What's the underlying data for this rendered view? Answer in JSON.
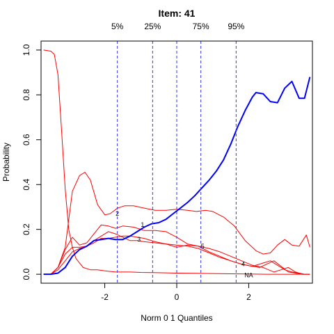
{
  "chart_data": {
    "type": "line",
    "title": "Item:  41",
    "xlabel": "Norm 0 1 Quantiles",
    "ylabel": "Probability",
    "xlim": [
      -3.77,
      3.77
    ],
    "ylim": [
      -0.04,
      1.04
    ],
    "xticks": [
      -2,
      0,
      2
    ],
    "xtick_labels": [
      "-2",
      "0",
      "2"
    ],
    "yticks": [
      0.0,
      0.2,
      0.4,
      0.6,
      0.8,
      1.0
    ],
    "ytick_labels": [
      "0.0",
      "0.2",
      "0.4",
      "0.6",
      "0.8",
      "1.0"
    ],
    "grid": false,
    "quantile_lines": [
      {
        "label": "5%",
        "x": -1.65
      },
      {
        "label": "25%",
        "x": -0.67
      },
      {
        "label": "",
        "x": 0.0
      },
      {
        "label": "75%",
        "x": 0.67
      },
      {
        "label": "95%",
        "x": 1.65
      }
    ],
    "series": [
      {
        "name": "1",
        "color": "#0000ff",
        "width": 2,
        "label_point": [
          -0.95,
          0.22
        ],
        "x": [
          -3.7,
          -3.5,
          -3.3,
          -3.1,
          -2.9,
          -2.7,
          -2.5,
          -2.3,
          -2.1,
          -1.9,
          -1.7,
          -1.5,
          -1.3,
          -1.1,
          -0.9,
          -0.7,
          -0.5,
          -0.3,
          -0.1,
          0.1,
          0.3,
          0.5,
          0.7,
          0.9,
          1.1,
          1.3,
          1.5,
          1.7,
          1.9,
          2.1,
          2.2,
          2.4,
          2.6,
          2.8,
          3.0,
          3.2,
          3.4,
          3.55,
          3.7
        ],
        "y": [
          0.0,
          0.0,
          0.005,
          0.03,
          0.08,
          0.11,
          0.125,
          0.15,
          0.155,
          0.16,
          0.155,
          0.155,
          0.17,
          0.19,
          0.21,
          0.225,
          0.23,
          0.245,
          0.27,
          0.295,
          0.32,
          0.35,
          0.385,
          0.42,
          0.46,
          0.51,
          0.58,
          0.66,
          0.73,
          0.79,
          0.81,
          0.805,
          0.77,
          0.765,
          0.83,
          0.86,
          0.785,
          0.785,
          0.88
        ]
      },
      {
        "name": "2",
        "color": "#ff0000",
        "width": 1,
        "label_point": [
          -1.65,
          0.27
        ],
        "x": [
          -3.7,
          -3.5,
          -3.3,
          -3.1,
          -2.9,
          -2.7,
          -2.55,
          -2.4,
          -2.2,
          -2.0,
          -1.85,
          -1.65,
          -1.45,
          -1.2,
          -0.9,
          -0.6,
          -0.3,
          0.0,
          0.3,
          0.55,
          0.8,
          1.0,
          1.3,
          1.6,
          1.9,
          2.2,
          2.4,
          2.6,
          2.8,
          3.0,
          3.2,
          3.4,
          3.6,
          3.7
        ],
        "y": [
          0.0,
          0.0,
          0.03,
          0.12,
          0.37,
          0.44,
          0.455,
          0.42,
          0.31,
          0.265,
          0.27,
          0.295,
          0.305,
          0.305,
          0.295,
          0.285,
          0.285,
          0.29,
          0.285,
          0.28,
          0.285,
          0.28,
          0.255,
          0.215,
          0.15,
          0.105,
          0.09,
          0.095,
          0.13,
          0.155,
          0.13,
          0.125,
          0.175,
          0.12
        ]
      },
      {
        "name": "3",
        "color": "#ff0000",
        "width": 1,
        "label_point": [
          -1.05,
          0.155
        ],
        "x": [
          -3.7,
          -3.5,
          -3.3,
          -3.1,
          -2.9,
          -2.7,
          -2.5,
          -2.3,
          -2.1,
          -1.9,
          -1.7,
          -1.5,
          -1.3,
          -1.1,
          -0.9,
          -0.6,
          -0.3,
          0.0,
          0.3,
          0.6,
          0.9,
          1.2,
          1.5,
          1.8,
          2.1,
          2.4,
          2.6,
          2.8,
          3.0,
          3.2,
          3.4,
          3.55,
          3.7
        ],
        "y": [
          0.0,
          0.0,
          0.03,
          0.09,
          0.12,
          0.12,
          0.125,
          0.15,
          0.17,
          0.19,
          0.18,
          0.165,
          0.15,
          0.15,
          0.145,
          0.14,
          0.135,
          0.13,
          0.125,
          0.115,
          0.095,
          0.075,
          0.06,
          0.045,
          0.035,
          0.05,
          0.06,
          0.04,
          0.02,
          0.01,
          0.005,
          0.0,
          0.0
        ]
      },
      {
        "name": "4",
        "color": "#ff0000",
        "width": 1,
        "label_point": [
          1.85,
          0.045
        ],
        "x": [
          -3.7,
          -3.5,
          -3.3,
          -3.1,
          -2.9,
          -2.7,
          -2.5,
          -2.3,
          -2.1,
          -1.9,
          -1.7,
          -1.5,
          -1.2,
          -0.9,
          -0.6,
          -0.3,
          0.0,
          0.3,
          0.6,
          0.9,
          1.2,
          1.5,
          1.8,
          2.1,
          2.3,
          2.5,
          2.7,
          2.9,
          3.1,
          3.3,
          3.5,
          3.7
        ],
        "y": [
          0.0,
          0.0,
          0.03,
          0.11,
          0.165,
          0.13,
          0.14,
          0.18,
          0.22,
          0.215,
          0.205,
          0.215,
          0.21,
          0.195,
          0.195,
          0.19,
          0.165,
          0.135,
          0.125,
          0.1,
          0.08,
          0.06,
          0.045,
          0.035,
          0.03,
          0.045,
          0.06,
          0.035,
          0.01,
          0.005,
          0.0,
          0.0
        ]
      },
      {
        "name": "5",
        "color": "#ff0000",
        "width": 1,
        "label_point": [
          0.72,
          0.125
        ],
        "x": [
          -3.7,
          -3.5,
          -3.3,
          -3.1,
          -2.9,
          -2.7,
          -2.5,
          -2.3,
          -2.1,
          -1.9,
          -1.7,
          -1.5,
          -1.3,
          -1.1,
          -0.9,
          -0.6,
          -0.3,
          0.0,
          0.3,
          0.6,
          0.9,
          1.2,
          1.5,
          1.8,
          2.1,
          2.4,
          2.7,
          2.9,
          3.1,
          3.3,
          3.5,
          3.7
        ],
        "y": [
          0.0,
          0.0,
          0.02,
          0.06,
          0.1,
          0.115,
          0.125,
          0.14,
          0.16,
          0.16,
          0.165,
          0.17,
          0.17,
          0.165,
          0.16,
          0.145,
          0.135,
          0.12,
          0.13,
          0.125,
          0.115,
          0.1,
          0.08,
          0.06,
          0.04,
          0.03,
          0.01,
          0.02,
          0.03,
          0.01,
          0.0,
          0.0
        ]
      },
      {
        "name": "NA",
        "color": "#ff0000",
        "width": 1,
        "label_point": [
          2.0,
          -0.005
        ],
        "x": [
          -3.7,
          -3.5,
          -3.4,
          -3.3,
          -3.2,
          -3.1,
          -3.0,
          -2.9,
          -2.8,
          -2.6,
          -2.4,
          -2.2,
          -2.0,
          -1.7,
          -1.3,
          -1.0,
          -0.5,
          0.0,
          0.5,
          1.0,
          1.5,
          2.0,
          2.5,
          3.0,
          3.7
        ],
        "y": [
          1.0,
          0.995,
          0.98,
          0.89,
          0.64,
          0.38,
          0.2,
          0.12,
          0.07,
          0.03,
          0.02,
          0.02,
          0.015,
          0.01,
          0.01,
          0.008,
          0.007,
          0.005,
          0.004,
          0.003,
          0.002,
          0.001,
          0.0,
          0.0,
          0.0
        ]
      }
    ]
  }
}
